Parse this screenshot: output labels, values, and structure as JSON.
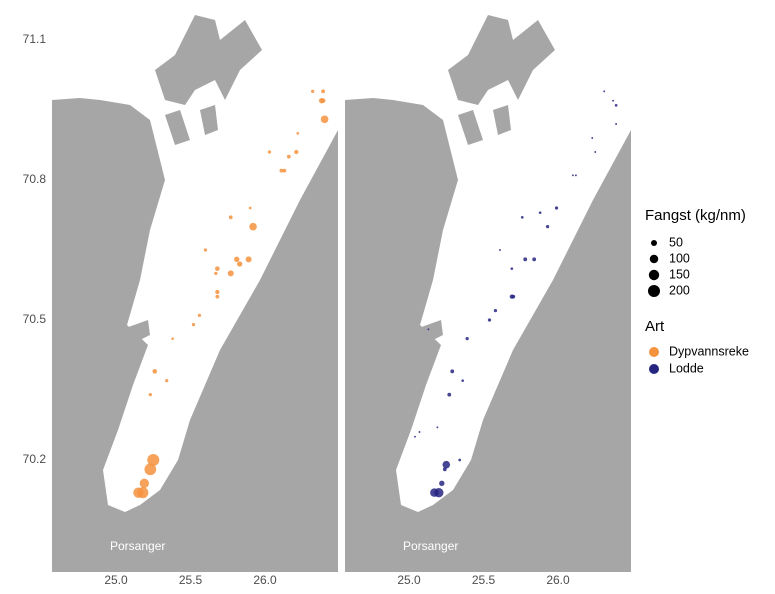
{
  "chart_data": {
    "type": "scatter",
    "xlim": [
      24.57,
      26.49
    ],
    "ylim": [
      69.96,
      71.16
    ],
    "xticks": [
      {
        "value": 25,
        "label": "25.0"
      },
      25.5,
      {
        "value": 26,
        "label": "26.0"
      }
    ],
    "yticks": [
      70.2,
      70.5,
      70.8,
      71.1
    ],
    "grid": true,
    "size_legend_title": "Fangst (kg/nm)",
    "size_legend_values": [
      50,
      100,
      150,
      200
    ],
    "color_legend_title": "Art",
    "series": [
      {
        "name": "Dypvannsreke",
        "color": "#f5923e",
        "annotation": "Porsanger",
        "x": [
          26.39,
          26.38,
          26.39,
          26.4,
          26.32,
          26.22,
          26.21,
          26.16,
          26.03,
          26.11,
          26.13,
          25.9,
          25.92,
          25.77,
          25.6,
          25.81,
          25.89,
          25.83,
          25.68,
          25.77,
          25.67,
          25.68,
          25.68,
          25.56,
          25.52,
          25.38,
          25.26,
          25.34,
          25.23,
          25.25,
          25.23,
          25.19,
          25.18,
          25.15
        ],
        "y": [
          70.99,
          70.97,
          70.97,
          70.93,
          70.99,
          70.9,
          70.86,
          70.85,
          70.86,
          70.82,
          70.82,
          70.74,
          70.7,
          70.72,
          70.65,
          70.63,
          70.63,
          70.62,
          70.61,
          70.6,
          70.6,
          70.56,
          70.55,
          70.51,
          70.49,
          70.46,
          70.39,
          70.37,
          70.34,
          70.2,
          70.18,
          70.15,
          70.13,
          70.13
        ],
        "size": [
          20,
          40,
          30,
          80,
          15,
          10,
          25,
          20,
          15,
          20,
          20,
          10,
          80,
          20,
          15,
          40,
          50,
          40,
          30,
          50,
          15,
          25,
          20,
          15,
          15,
          10,
          30,
          15,
          15,
          200,
          190,
          120,
          170,
          150
        ]
      },
      {
        "name": "Lodde",
        "color": "#262681",
        "annotation": "Porsanger",
        "x": [
          26.31,
          26.37,
          26.39,
          26.39,
          26.23,
          26.25,
          26.12,
          26.1,
          25.99,
          25.88,
          25.93,
          25.76,
          25.61,
          25.78,
          25.84,
          25.69,
          25.69,
          25.7,
          25.58,
          25.54,
          25.39,
          25.29,
          25.36,
          25.27,
          25.19,
          25.07,
          25.25,
          25.34,
          25.24,
          25.22,
          25.2,
          25.17,
          25.13,
          25.04
        ],
        "y": [
          70.99,
          70.97,
          70.96,
          70.92,
          70.89,
          70.86,
          70.81,
          70.81,
          70.74,
          70.73,
          70.7,
          70.72,
          70.65,
          70.63,
          70.63,
          70.61,
          70.55,
          70.55,
          70.52,
          70.5,
          70.46,
          70.39,
          70.37,
          70.34,
          70.27,
          70.26,
          70.19,
          70.2,
          70.18,
          70.15,
          70.13,
          70.13,
          70.48,
          70.25
        ],
        "size": [
          5,
          5,
          10,
          5,
          5,
          5,
          5,
          5,
          15,
          10,
          15,
          10,
          5,
          20,
          20,
          10,
          25,
          20,
          15,
          15,
          15,
          20,
          10,
          20,
          5,
          5,
          80,
          10,
          20,
          40,
          120,
          100,
          5,
          5
        ]
      }
    ]
  }
}
